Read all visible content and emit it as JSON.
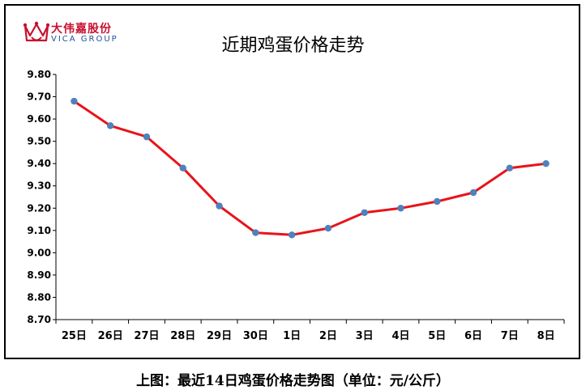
{
  "logo": {
    "name_cn": "大伟嘉股份",
    "name_en": "VICA GROUP"
  },
  "caption": "上图：最近14日鸡蛋价格走势图（单位：元/公斤）",
  "chart_data": {
    "type": "line",
    "title": "近期鸡蛋价格走势",
    "xlabel": "",
    "ylabel": "",
    "unit": "元/公斤",
    "categories": [
      "25日",
      "26日",
      "27日",
      "28日",
      "29日",
      "30日",
      "1日",
      "2日",
      "3日",
      "4日",
      "5日",
      "6日",
      "7日",
      "8日"
    ],
    "series": [
      {
        "values": [
          9.68,
          9.57,
          9.52,
          9.38,
          9.21,
          9.09,
          9.08,
          9.11,
          9.18,
          9.2,
          9.23,
          9.27,
          9.38,
          9.4
        ]
      }
    ],
    "ylim": [
      8.7,
      9.8
    ],
    "ytick_step": 0.1,
    "grid": false,
    "legend": "none",
    "line_color": "#e8141b",
    "marker_color": "#4f81bd"
  }
}
